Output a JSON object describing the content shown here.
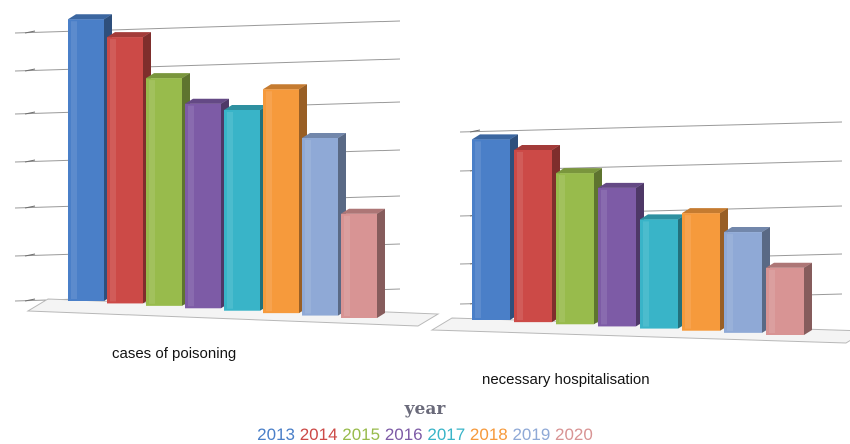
{
  "legend": {
    "title": "year",
    "items": [
      {
        "label": "2013",
        "color": "#4a7fc8"
      },
      {
        "label": "2014",
        "color": "#cc4a47"
      },
      {
        "label": "2015",
        "color": "#98bb4c"
      },
      {
        "label": "2016",
        "color": "#7d5ba6"
      },
      {
        "label": "2017",
        "color": "#39b4c8"
      },
      {
        "label": "2018",
        "color": "#f69a3c"
      },
      {
        "label": "2019",
        "color": "#8fa9d6"
      },
      {
        "label": "2020",
        "color": "#d89494"
      }
    ]
  },
  "chart_data": [
    {
      "type": "bar",
      "title": "cases of poisoning",
      "categories": [
        "2013",
        "2014",
        "2015",
        "2016",
        "2017",
        "2018",
        "2019",
        "2020"
      ],
      "values": [
        7.3,
        6.9,
        5.9,
        5.3,
        5.2,
        5.8,
        4.6,
        2.7
      ],
      "grid": true,
      "three_d": true,
      "legend_position": "bottom"
    },
    {
      "type": "bar",
      "title": "necessary hospitalisation",
      "categories": [
        "2013",
        "2014",
        "2015",
        "2016",
        "2017",
        "2018",
        "2019",
        "2020"
      ],
      "values": [
        4.3,
        4.1,
        3.6,
        3.3,
        2.6,
        2.8,
        2.4,
        1.6
      ],
      "grid": true,
      "three_d": true,
      "legend_position": "bottom"
    }
  ]
}
